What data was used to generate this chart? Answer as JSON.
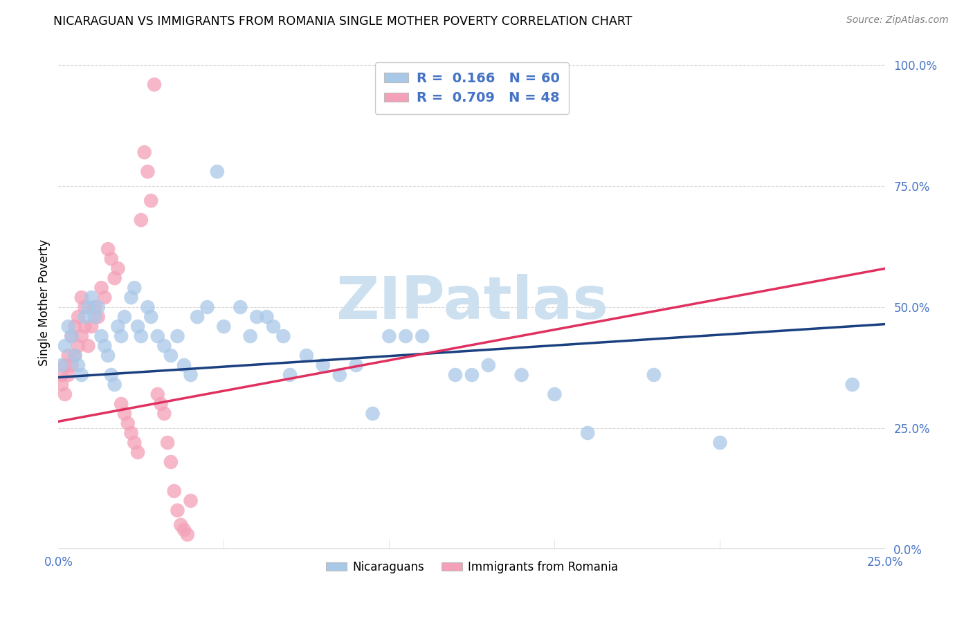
{
  "title": "NICARAGUAN VS IMMIGRANTS FROM ROMANIA SINGLE MOTHER POVERTY CORRELATION CHART",
  "source": "Source: ZipAtlas.com",
  "ylabel": "Single Mother Poverty",
  "nicaraguan_color": "#a8c8e8",
  "romania_color": "#f4a0b8",
  "nicaraguan_line_color": "#1a4080",
  "romania_line_color": "#e03060",
  "watermark": "ZIPatlas",
  "watermark_color": "#cde0f0",
  "background_color": "#ffffff",
  "grid_color": "#d8d8d8",
  "xlim": [
    0.0,
    0.25
  ],
  "ylim": [
    0.0,
    1.02
  ],
  "ytick_positions": [
    0.0,
    0.25,
    0.5,
    0.75,
    1.0
  ],
  "ytick_labels": [
    "0.0%",
    "25.0%",
    "50.0%",
    "75.0%",
    "100.0%"
  ],
  "xtick_positions": [
    0.0,
    0.05,
    0.1,
    0.15,
    0.2,
    0.25
  ],
  "xtick_labels": [
    "0.0%",
    "",
    "",
    "",
    "",
    "25.0%"
  ],
  "nic_x": [
    0.001,
    0.002,
    0.003,
    0.004,
    0.005,
    0.006,
    0.007,
    0.008,
    0.009,
    0.01,
    0.011,
    0.012,
    0.013,
    0.014,
    0.015,
    0.016,
    0.017,
    0.018,
    0.019,
    0.02,
    0.022,
    0.023,
    0.024,
    0.025,
    0.027,
    0.028,
    0.03,
    0.032,
    0.034,
    0.036,
    0.038,
    0.04,
    0.042,
    0.045,
    0.048,
    0.05,
    0.055,
    0.058,
    0.06,
    0.063,
    0.065,
    0.068,
    0.07,
    0.075,
    0.08,
    0.085,
    0.09,
    0.095,
    0.1,
    0.105,
    0.11,
    0.12,
    0.125,
    0.13,
    0.14,
    0.15,
    0.16,
    0.18,
    0.2,
    0.24
  ],
  "nic_y": [
    0.38,
    0.42,
    0.46,
    0.44,
    0.4,
    0.38,
    0.36,
    0.48,
    0.5,
    0.52,
    0.48,
    0.5,
    0.44,
    0.42,
    0.4,
    0.36,
    0.34,
    0.46,
    0.44,
    0.48,
    0.52,
    0.54,
    0.46,
    0.44,
    0.5,
    0.48,
    0.44,
    0.42,
    0.4,
    0.44,
    0.38,
    0.36,
    0.48,
    0.5,
    0.78,
    0.46,
    0.5,
    0.44,
    0.48,
    0.48,
    0.46,
    0.44,
    0.36,
    0.4,
    0.38,
    0.36,
    0.38,
    0.28,
    0.44,
    0.44,
    0.44,
    0.36,
    0.36,
    0.38,
    0.36,
    0.32,
    0.24,
    0.36,
    0.22,
    0.34
  ],
  "rom_x": [
    0.001,
    0.001,
    0.002,
    0.002,
    0.003,
    0.003,
    0.004,
    0.004,
    0.005,
    0.005,
    0.006,
    0.006,
    0.007,
    0.007,
    0.008,
    0.008,
    0.009,
    0.01,
    0.011,
    0.012,
    0.013,
    0.014,
    0.015,
    0.016,
    0.017,
    0.018,
    0.019,
    0.02,
    0.021,
    0.022,
    0.023,
    0.024,
    0.025,
    0.026,
    0.027,
    0.028,
    0.029,
    0.03,
    0.031,
    0.032,
    0.033,
    0.034,
    0.035,
    0.036,
    0.037,
    0.038,
    0.039,
    0.04
  ],
  "rom_y": [
    0.36,
    0.34,
    0.38,
    0.32,
    0.4,
    0.36,
    0.44,
    0.38,
    0.46,
    0.4,
    0.48,
    0.42,
    0.44,
    0.52,
    0.46,
    0.5,
    0.42,
    0.46,
    0.5,
    0.48,
    0.54,
    0.52,
    0.62,
    0.6,
    0.56,
    0.58,
    0.3,
    0.28,
    0.26,
    0.24,
    0.22,
    0.2,
    0.68,
    0.82,
    0.78,
    0.72,
    0.96,
    0.32,
    0.3,
    0.28,
    0.22,
    0.18,
    0.12,
    0.08,
    0.05,
    0.04,
    0.03,
    0.1
  ],
  "nic_line_x0": 0.0,
  "nic_line_x1": 0.25,
  "nic_line_y0": 0.355,
  "nic_line_y1": 0.465,
  "rom_line_x0": -0.003,
  "rom_line_x1": 0.25,
  "rom_line_y0": 0.26,
  "rom_line_y1": 0.58
}
